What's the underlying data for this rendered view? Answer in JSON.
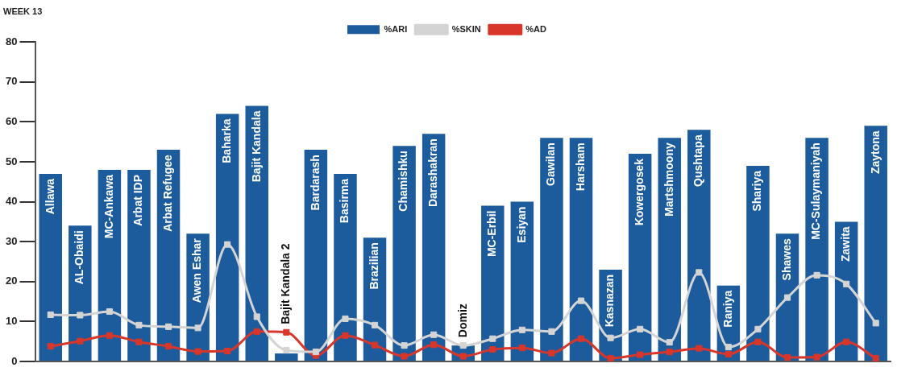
{
  "chart_data": {
    "type": "bar",
    "title": "WEEK 13",
    "categories": [
      "Allawa",
      "AL-Obaidi",
      "MC-Ankawa",
      "Arbat IDP",
      "Arbat Refugee",
      "Awen Eshar",
      "Baharka",
      "Bajit Kandala",
      "Bajit Kandala 2",
      "Bardarash",
      "Basirma",
      "Brazilian",
      "Chamishku",
      "Darashakran",
      "Domiz",
      "MC-Erbil",
      "Esiyan",
      "Gawilan",
      "Harsham",
      "Kasnazan",
      "Kowergosek",
      "Martshmoony",
      "Qushtapa",
      "Raniya",
      "Shariya",
      "Shawes",
      "MC-Sulaymaniyah",
      "Zawita",
      "Zaytona"
    ],
    "series": [
      {
        "name": "%ARI",
        "color": "#1d5c9c",
        "values": [
          47,
          34,
          48,
          48,
          53,
          32,
          62,
          64,
          2,
          53,
          47,
          31,
          54,
          57,
          4,
          39,
          40,
          56,
          56,
          23,
          52,
          56,
          58,
          19,
          49,
          32,
          56,
          35,
          59
        ]
      },
      {
        "name": "%SKIN",
        "type": "line",
        "color": "#d4d4d4",
        "values": [
          11.7,
          11.6,
          12.5,
          9.1,
          8.7,
          8.4,
          29.3,
          11.2,
          2.8,
          2.4,
          10.7,
          9.1,
          4,
          6.7,
          4,
          5.7,
          7.9,
          7.5,
          15.2,
          5.9,
          8.1,
          4.8,
          22.3,
          3.6,
          8.1,
          16,
          21.6,
          19.4,
          9.6
        ]
      },
      {
        "name": "%AD",
        "type": "line",
        "color": "#d9362b",
        "values": [
          3.8,
          5.1,
          6.5,
          4.9,
          3.8,
          2.5,
          2.6,
          7.5,
          7.3,
          1.5,
          6.5,
          4.1,
          1.3,
          4.2,
          1.3,
          3,
          3.4,
          2.1,
          5.7,
          0.8,
          1.7,
          2.4,
          3.3,
          1.8,
          4.9,
          1,
          1.1,
          4.9,
          0.8
        ]
      }
    ],
    "ylim": [
      0,
      80
    ],
    "yticks": [
      0,
      10,
      20,
      30,
      40,
      50,
      60,
      70,
      80
    ],
    "marker": "square",
    "legend": "top",
    "grid": false
  }
}
